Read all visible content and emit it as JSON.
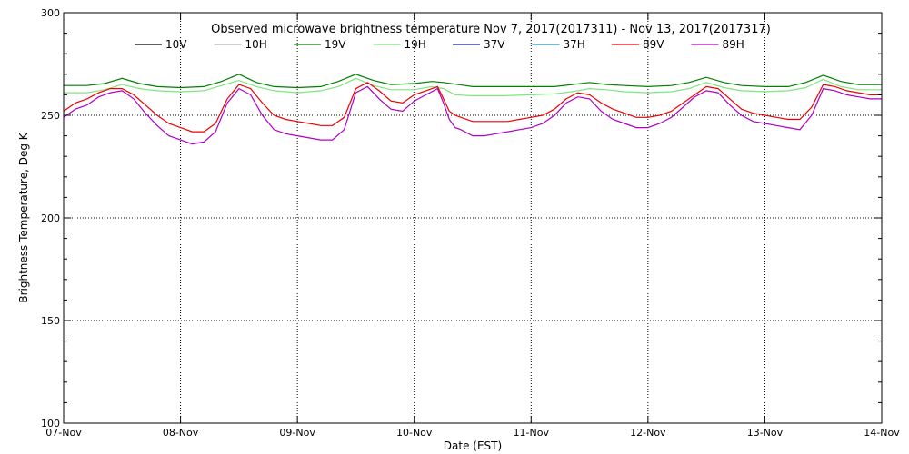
{
  "chart_data": {
    "type": "line",
    "title": "Observed microwave brightness temperature Nov  7, 2017(2017311) - Nov 13, 2017(2017317)",
    "xlabel": "Date (EST)",
    "ylabel": "Brightness Temperature, Deg K",
    "ylim": [
      100,
      300
    ],
    "yticks": [
      100,
      150,
      200,
      250,
      300
    ],
    "xlim": [
      0,
      7
    ],
    "xticks": [
      0,
      1,
      2,
      3,
      4,
      5,
      6,
      7
    ],
    "xtick_labels": [
      "07-Nov",
      "08-Nov",
      "09-Nov",
      "10-Nov",
      "11-Nov",
      "12-Nov",
      "13-Nov",
      "14-Nov"
    ],
    "grid": true,
    "legend_position": "top",
    "series": [
      {
        "name": "10V",
        "color": "#000000",
        "x": [],
        "y": []
      },
      {
        "name": "10H",
        "color": "#b0b0b0",
        "x": [],
        "y": []
      },
      {
        "name": "19V",
        "color": "#008000",
        "x": [
          0,
          0.2,
          0.35,
          0.5,
          0.65,
          0.8,
          1.0,
          1.2,
          1.35,
          1.5,
          1.65,
          1.8,
          2.0,
          2.2,
          2.35,
          2.5,
          2.65,
          2.8,
          3.0,
          3.15,
          3.25,
          3.5,
          3.75,
          4.0,
          4.2,
          4.35,
          4.5,
          4.65,
          4.8,
          5.0,
          5.2,
          5.35,
          5.5,
          5.65,
          5.8,
          6.0,
          6.2,
          6.35,
          6.5,
          6.65,
          6.8,
          7.0
        ],
        "y": [
          264.5,
          264.5,
          265.5,
          268,
          265.5,
          264,
          263.5,
          264,
          266.5,
          270,
          266,
          264,
          263.5,
          264,
          266.5,
          270,
          267,
          265,
          265.5,
          266.5,
          266,
          264,
          264,
          264,
          264,
          265,
          266,
          265,
          264.5,
          264,
          264.5,
          266,
          268.5,
          266,
          264.5,
          264,
          264,
          266,
          269.5,
          266.5,
          265,
          265
        ]
      },
      {
        "name": "19H",
        "color": "#7fe57f",
        "x": [
          0,
          0.2,
          0.35,
          0.5,
          0.65,
          0.8,
          1.0,
          1.2,
          1.35,
          1.5,
          1.65,
          1.8,
          2.0,
          2.2,
          2.35,
          2.5,
          2.65,
          2.8,
          3.0,
          3.15,
          3.25,
          3.35,
          3.5,
          3.75,
          4.0,
          4.2,
          4.35,
          4.5,
          4.65,
          4.8,
          5.0,
          5.2,
          5.35,
          5.5,
          5.65,
          5.8,
          6.0,
          6.2,
          6.35,
          6.5,
          6.65,
          6.8,
          7.0
        ],
        "y": [
          261,
          261,
          262.5,
          265,
          263,
          262,
          261.5,
          262,
          264.5,
          267,
          264,
          262,
          261,
          262,
          264,
          268,
          264.5,
          262.5,
          262.5,
          264,
          263,
          260,
          259.5,
          259.5,
          260,
          260.5,
          261.5,
          263,
          262.5,
          261.5,
          261,
          261.5,
          263,
          266,
          263.5,
          262,
          261.5,
          262,
          263.5,
          267.5,
          264,
          262.5,
          262.5
        ]
      },
      {
        "name": "37V",
        "color": "#1e1e96",
        "x": [],
        "y": []
      },
      {
        "name": "37H",
        "color": "#1a8fb5",
        "x": [],
        "y": []
      },
      {
        "name": "89V",
        "color": "#ee0000",
        "x": [
          0,
          0.1,
          0.2,
          0.3,
          0.4,
          0.5,
          0.6,
          0.7,
          0.8,
          0.9,
          1.0,
          1.1,
          1.2,
          1.3,
          1.4,
          1.5,
          1.6,
          1.7,
          1.8,
          1.9,
          2.0,
          2.1,
          2.2,
          2.3,
          2.4,
          2.5,
          2.6,
          2.7,
          2.8,
          2.9,
          3.0,
          3.1,
          3.2,
          3.25,
          3.3,
          3.35,
          3.4,
          3.5,
          3.6,
          3.7,
          3.8,
          3.9,
          4.0,
          4.1,
          4.2,
          4.3,
          4.4,
          4.5,
          4.6,
          4.7,
          4.8,
          4.9,
          5.0,
          5.1,
          5.2,
          5.3,
          5.4,
          5.5,
          5.6,
          5.7,
          5.8,
          5.9,
          6.0,
          6.1,
          6.2,
          6.3,
          6.4,
          6.5,
          6.6,
          6.7,
          6.8,
          6.9,
          7.0
        ],
        "y": [
          252,
          256,
          258,
          261,
          263,
          263,
          260,
          255,
          250,
          246,
          244,
          242,
          242,
          246,
          258,
          265,
          263,
          256,
          250,
          248,
          247,
          246,
          245,
          245,
          249,
          263,
          266,
          262,
          257,
          256,
          260,
          262,
          264,
          258,
          252,
          250,
          249,
          247,
          247,
          247,
          247,
          248,
          249,
          250,
          253,
          258,
          261,
          260,
          256,
          253,
          251,
          249,
          249,
          250,
          252,
          256,
          260,
          264,
          263,
          258,
          253,
          251,
          250,
          249,
          248,
          248,
          254,
          265,
          264,
          262,
          261,
          260,
          260
        ]
      },
      {
        "name": "89H",
        "color": "#b000c8",
        "x": [
          0,
          0.1,
          0.2,
          0.3,
          0.4,
          0.5,
          0.6,
          0.7,
          0.8,
          0.9,
          1.0,
          1.1,
          1.2,
          1.3,
          1.4,
          1.5,
          1.6,
          1.7,
          1.8,
          1.9,
          2.0,
          2.1,
          2.2,
          2.3,
          2.4,
          2.5,
          2.6,
          2.7,
          2.8,
          2.9,
          3.0,
          3.1,
          3.2,
          3.25,
          3.3,
          3.35,
          3.4,
          3.5,
          3.6,
          3.7,
          3.8,
          3.9,
          4.0,
          4.1,
          4.2,
          4.3,
          4.4,
          4.5,
          4.6,
          4.7,
          4.8,
          4.9,
          5.0,
          5.1,
          5.2,
          5.3,
          5.4,
          5.5,
          5.6,
          5.7,
          5.8,
          5.9,
          6.0,
          6.1,
          6.2,
          6.3,
          6.4,
          6.5,
          6.6,
          6.7,
          6.8,
          6.9,
          7.0
        ],
        "y": [
          249,
          253,
          255,
          259,
          261,
          262,
          258,
          251,
          245,
          240,
          238,
          236,
          237,
          242,
          256,
          263,
          260,
          250,
          243,
          241,
          240,
          239,
          238,
          238,
          243,
          261,
          264,
          258,
          253,
          252,
          257,
          260,
          263,
          256,
          248,
          244,
          243,
          240,
          240,
          241,
          242,
          243,
          244,
          246,
          250,
          256,
          259,
          258,
          252,
          248,
          246,
          244,
          244,
          246,
          249,
          254,
          259,
          262,
          261,
          255,
          250,
          247,
          246,
          245,
          244,
          243,
          250,
          263,
          262,
          260,
          259,
          258,
          258
        ]
      }
    ]
  }
}
